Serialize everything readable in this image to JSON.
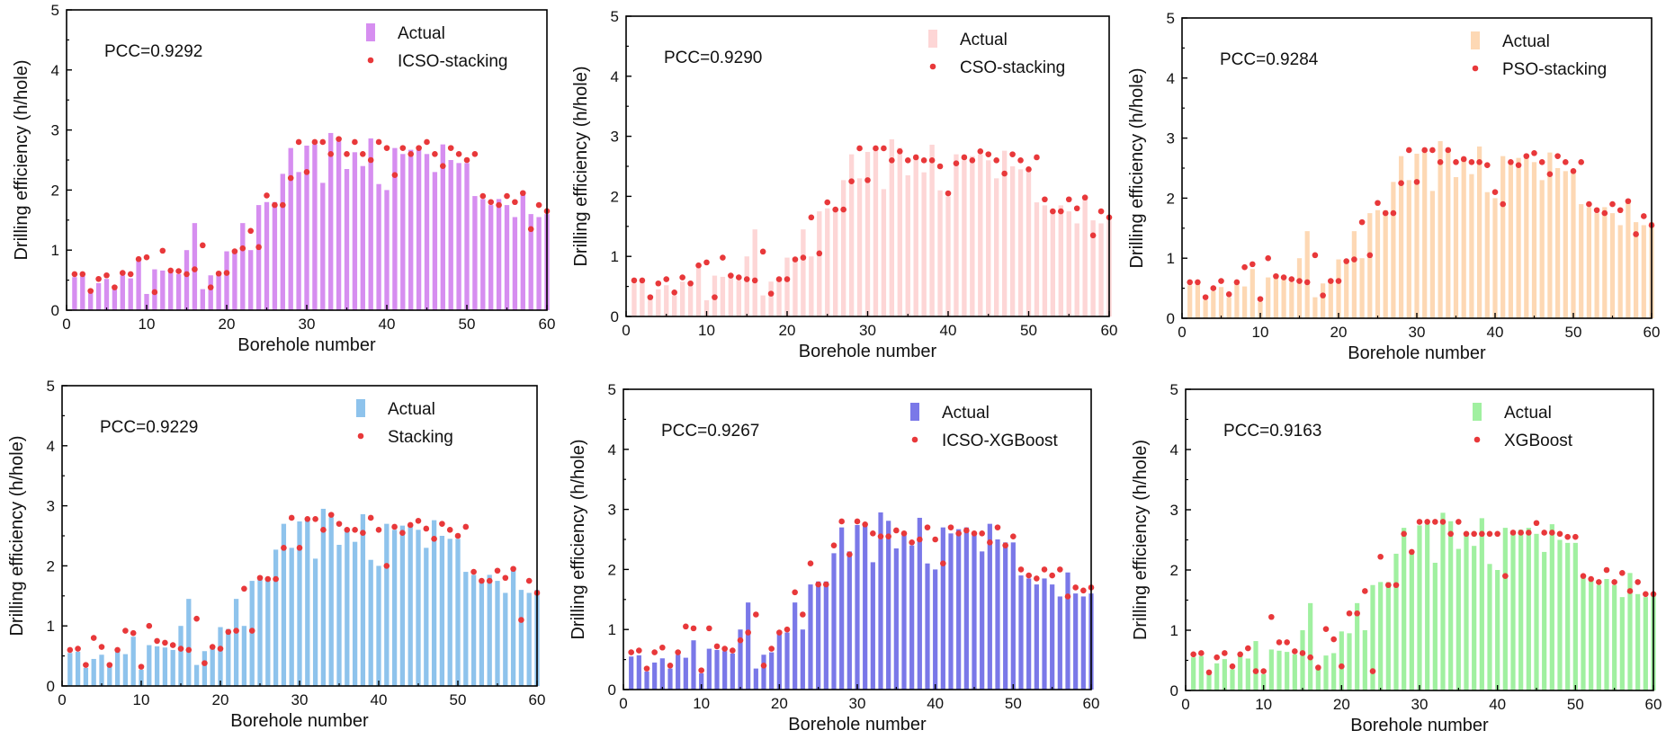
{
  "chart_data": [
    {
      "type": "bar",
      "pcc": "PCC=0.9292",
      "xlabel": "Borehole number",
      "ylabel": "Drilling efficiency (h/hole)",
      "xlim": [
        0,
        60
      ],
      "ylim": [
        0,
        5
      ],
      "xticks": [
        "0",
        "10",
        "20",
        "30",
        "40",
        "50",
        "60"
      ],
      "yticks": [
        "0",
        "1",
        "2",
        "3",
        "4",
        "5"
      ],
      "bar_color": "#d68ef0",
      "point_color": "#e8383a",
      "legend": {
        "position": "top-right",
        "bar_label": "Actual",
        "point_label": "ICSO-stacking"
      },
      "actual": [
        0.55,
        0.57,
        0.3,
        0.45,
        0.52,
        0.35,
        0.58,
        0.53,
        0.82,
        0.27,
        0.68,
        0.66,
        0.64,
        0.6,
        1.0,
        1.45,
        0.35,
        0.58,
        0.62,
        0.98,
        0.95,
        1.45,
        1.0,
        1.75,
        1.8,
        1.8,
        2.27,
        2.7,
        2.3,
        2.74,
        2.76,
        2.12,
        2.95,
        2.81,
        2.35,
        2.63,
        2.4,
        2.86,
        2.1,
        2.0,
        2.7,
        2.6,
        2.67,
        2.7,
        2.6,
        2.3,
        2.76,
        2.5,
        2.45,
        2.45,
        1.9,
        1.85,
        1.75,
        1.85,
        1.75,
        1.55,
        1.95,
        1.6,
        1.55,
        1.6
      ],
      "predicted": [
        0.6,
        0.6,
        0.32,
        0.52,
        0.58,
        0.38,
        0.62,
        0.6,
        0.85,
        0.88,
        0.3,
        0.99,
        0.66,
        0.65,
        0.6,
        0.68,
        1.08,
        0.38,
        0.61,
        0.62,
        0.98,
        1.03,
        1.32,
        1.05,
        1.91,
        1.75,
        1.75,
        2.2,
        2.8,
        2.3,
        2.8,
        2.8,
        2.6,
        2.85,
        2.6,
        2.8,
        2.6,
        2.5,
        2.8,
        2.7,
        2.25,
        2.7,
        2.6,
        2.7,
        2.8,
        2.6,
        2.4,
        2.7,
        2.6,
        2.5,
        2.6,
        1.9,
        1.8,
        1.75,
        1.9,
        1.8,
        1.95,
        1.35,
        1.75,
        1.65
      ]
    },
    {
      "type": "bar",
      "pcc": "PCC=0.9290",
      "xlabel": "Borehole number",
      "ylabel": "Drilling efficiency (h/hole)",
      "xlim": [
        0,
        60
      ],
      "ylim": [
        0,
        5
      ],
      "xticks": [
        "0",
        "10",
        "20",
        "30",
        "40",
        "50",
        "60"
      ],
      "yticks": [
        "0",
        "1",
        "2",
        "3",
        "4",
        "5"
      ],
      "bar_color": "#fdd6d6",
      "point_color": "#e8383a",
      "legend": {
        "position": "top-right",
        "bar_label": "Actual",
        "point_label": "CSO-stacking"
      },
      "actual": [
        0.55,
        0.57,
        0.3,
        0.45,
        0.52,
        0.35,
        0.58,
        0.53,
        0.82,
        0.27,
        0.68,
        0.66,
        0.64,
        0.6,
        1.0,
        1.45,
        0.35,
        0.58,
        0.62,
        0.98,
        0.95,
        1.45,
        1.0,
        1.75,
        1.8,
        1.8,
        2.27,
        2.7,
        2.3,
        2.74,
        2.76,
        2.12,
        2.95,
        2.81,
        2.35,
        2.63,
        2.4,
        2.86,
        2.1,
        2.0,
        2.7,
        2.6,
        2.67,
        2.7,
        2.6,
        2.3,
        2.76,
        2.5,
        2.45,
        2.45,
        1.9,
        1.85,
        1.75,
        1.85,
        1.75,
        1.55,
        1.95,
        1.6,
        1.55,
        1.6
      ],
      "predicted": [
        0.6,
        0.6,
        0.32,
        0.55,
        0.62,
        0.4,
        0.65,
        0.55,
        0.85,
        0.9,
        0.32,
        0.98,
        0.68,
        0.65,
        0.62,
        0.6,
        1.08,
        0.38,
        0.62,
        0.62,
        0.95,
        0.98,
        1.65,
        1.05,
        1.9,
        1.78,
        1.78,
        2.25,
        2.8,
        2.27,
        2.8,
        2.8,
        2.6,
        2.75,
        2.6,
        2.65,
        2.6,
        2.6,
        2.5,
        2.05,
        2.55,
        2.65,
        2.6,
        2.75,
        2.7,
        2.6,
        2.38,
        2.7,
        2.6,
        2.45,
        2.65,
        1.95,
        1.75,
        1.75,
        1.95,
        1.8,
        1.98,
        1.35,
        1.75,
        1.65
      ]
    },
    {
      "type": "bar",
      "pcc": "PCC=0.9284",
      "xlabel": "Borehole number",
      "ylabel": "Drilling efficiency (h/hole)",
      "xlim": [
        0,
        60
      ],
      "ylim": [
        0,
        5
      ],
      "xticks": [
        "0",
        "10",
        "20",
        "30",
        "40",
        "50",
        "60"
      ],
      "yticks": [
        "0",
        "1",
        "2",
        "3",
        "4",
        "5"
      ],
      "bar_color": "#fdd8b4",
      "point_color": "#e8383a",
      "legend": {
        "position": "top-right",
        "bar_label": "Actual",
        "point_label": "PSO-stacking"
      },
      "actual": [
        0.55,
        0.57,
        0.3,
        0.45,
        0.52,
        0.35,
        0.58,
        0.53,
        0.82,
        0.27,
        0.68,
        0.66,
        0.64,
        0.6,
        1.0,
        1.45,
        0.35,
        0.58,
        0.62,
        0.98,
        0.95,
        1.45,
        1.0,
        1.75,
        1.8,
        1.8,
        2.27,
        2.7,
        2.3,
        2.74,
        2.76,
        2.12,
        2.95,
        2.81,
        2.35,
        2.63,
        2.4,
        2.86,
        2.1,
        2.0,
        2.7,
        2.6,
        2.67,
        2.7,
        2.6,
        2.3,
        2.76,
        2.5,
        2.45,
        2.45,
        1.9,
        1.85,
        1.75,
        1.85,
        1.75,
        1.55,
        1.95,
        1.6,
        1.55,
        1.6
      ],
      "predicted": [
        0.6,
        0.6,
        0.35,
        0.5,
        0.62,
        0.4,
        0.6,
        0.85,
        0.9,
        0.32,
        1.0,
        0.7,
        0.68,
        0.65,
        0.62,
        0.6,
        1.05,
        0.38,
        0.62,
        0.62,
        0.95,
        0.98,
        1.6,
        1.05,
        1.92,
        1.75,
        1.75,
        2.25,
        2.8,
        2.27,
        2.8,
        2.8,
        2.6,
        2.8,
        2.6,
        2.65,
        2.6,
        2.6,
        2.55,
        2.1,
        1.9,
        2.6,
        2.55,
        2.7,
        2.75,
        2.6,
        2.4,
        2.7,
        2.6,
        2.45,
        2.6,
        1.9,
        1.8,
        1.75,
        1.9,
        1.8,
        1.95,
        1.4,
        1.7,
        1.55
      ]
    },
    {
      "type": "bar",
      "pcc": "PCC=0.9229",
      "xlabel": "Borehole number",
      "ylabel": "Drilling efficiency (h/hole)",
      "xlim": [
        0,
        60
      ],
      "ylim": [
        0,
        5
      ],
      "xticks": [
        "0",
        "10",
        "20",
        "30",
        "40",
        "50",
        "60"
      ],
      "yticks": [
        "0",
        "1",
        "2",
        "3",
        "4",
        "5"
      ],
      "bar_color": "#8ec3ec",
      "point_color": "#e8383a",
      "legend": {
        "position": "top-right",
        "bar_label": "Actual",
        "point_label": "Stacking"
      },
      "actual": [
        0.55,
        0.57,
        0.3,
        0.45,
        0.52,
        0.35,
        0.58,
        0.53,
        0.82,
        0.27,
        0.68,
        0.66,
        0.64,
        0.6,
        1.0,
        1.45,
        0.35,
        0.58,
        0.62,
        0.98,
        0.95,
        1.45,
        1.0,
        1.75,
        1.8,
        1.8,
        2.27,
        2.7,
        2.3,
        2.74,
        2.76,
        2.12,
        2.95,
        2.81,
        2.35,
        2.63,
        2.4,
        2.86,
        2.1,
        2.0,
        2.7,
        2.6,
        2.67,
        2.7,
        2.6,
        2.3,
        2.76,
        2.5,
        2.45,
        2.45,
        1.9,
        1.85,
        1.75,
        1.85,
        1.75,
        1.55,
        1.95,
        1.6,
        1.55,
        1.6
      ],
      "predicted": [
        0.6,
        0.62,
        0.35,
        0.8,
        0.65,
        0.35,
        0.6,
        0.92,
        0.88,
        0.32,
        1.0,
        0.75,
        0.72,
        0.68,
        0.62,
        0.6,
        1.12,
        0.38,
        0.65,
        0.62,
        0.9,
        0.92,
        1.62,
        0.92,
        1.8,
        1.78,
        1.78,
        2.3,
        2.8,
        2.3,
        2.78,
        2.78,
        2.6,
        2.85,
        2.7,
        2.6,
        2.6,
        2.55,
        2.8,
        2.6,
        2.0,
        2.65,
        2.55,
        2.68,
        2.75,
        2.62,
        2.45,
        2.7,
        2.6,
        2.5,
        2.65,
        1.9,
        1.75,
        1.75,
        1.92,
        1.8,
        1.95,
        1.1,
        1.75,
        1.55
      ]
    },
    {
      "type": "bar",
      "pcc": "PCC=0.9267",
      "xlabel": "Borehole number",
      "ylabel": "Drilling efficiency (h/hole)",
      "xlim": [
        0,
        60
      ],
      "ylim": [
        0,
        5
      ],
      "xticks": [
        "0",
        "10",
        "20",
        "30",
        "40",
        "50",
        "60"
      ],
      "yticks": [
        "0",
        "1",
        "2",
        "3",
        "4",
        "5"
      ],
      "bar_color": "#7a78e8",
      "point_color": "#e8383a",
      "legend": {
        "position": "top-right",
        "bar_label": "Actual",
        "point_label": "ICSO-XGBoost"
      },
      "actual": [
        0.55,
        0.57,
        0.3,
        0.45,
        0.52,
        0.35,
        0.58,
        0.53,
        0.82,
        0.27,
        0.68,
        0.66,
        0.64,
        0.6,
        1.0,
        1.45,
        0.35,
        0.58,
        0.62,
        0.98,
        0.95,
        1.45,
        1.0,
        1.75,
        1.8,
        1.8,
        2.27,
        2.7,
        2.3,
        2.74,
        2.76,
        2.12,
        2.95,
        2.81,
        2.35,
        2.63,
        2.4,
        2.86,
        2.1,
        2.0,
        2.7,
        2.6,
        2.67,
        2.7,
        2.6,
        2.3,
        2.76,
        2.5,
        2.45,
        2.45,
        1.9,
        1.85,
        1.75,
        1.85,
        1.75,
        1.55,
        1.95,
        1.6,
        1.55,
        1.6
      ],
      "predicted": [
        0.62,
        0.65,
        0.35,
        0.62,
        0.7,
        0.4,
        0.62,
        1.05,
        1.02,
        0.32,
        1.02,
        0.72,
        0.68,
        0.65,
        0.82,
        0.95,
        1.25,
        0.4,
        0.68,
        0.95,
        1.0,
        1.62,
        1.25,
        2.1,
        1.75,
        1.75,
        2.4,
        2.8,
        2.25,
        2.8,
        2.75,
        2.6,
        2.55,
        2.55,
        2.65,
        2.6,
        2.45,
        2.5,
        2.7,
        2.5,
        2.1,
        2.7,
        2.6,
        2.65,
        2.6,
        2.6,
        2.45,
        2.7,
        2.4,
        2.55,
        2.0,
        1.9,
        1.85,
        2.0,
        1.9,
        2.0,
        1.55,
        1.7,
        1.65,
        1.7
      ]
    },
    {
      "type": "bar",
      "pcc": "PCC=0.9163",
      "xlabel": "Borehole number",
      "ylabel": "Drilling efficiency (h/hole)",
      "xlim": [
        0,
        60
      ],
      "ylim": [
        0,
        5
      ],
      "xticks": [
        "0",
        "10",
        "20",
        "30",
        "40",
        "50",
        "60"
      ],
      "yticks": [
        "0",
        "1",
        "2",
        "3",
        "4",
        "5"
      ],
      "bar_color": "#a0f0a0",
      "point_color": "#e8383a",
      "legend": {
        "position": "top-right",
        "bar_label": "Actual",
        "point_label": "XGBoost"
      },
      "actual": [
        0.55,
        0.57,
        0.3,
        0.45,
        0.52,
        0.35,
        0.58,
        0.53,
        0.82,
        0.27,
        0.68,
        0.66,
        0.64,
        0.6,
        1.0,
        1.45,
        0.35,
        0.58,
        0.62,
        0.98,
        0.95,
        1.45,
        1.0,
        1.75,
        1.8,
        1.8,
        2.27,
        2.7,
        2.3,
        2.74,
        2.76,
        2.12,
        2.95,
        2.81,
        2.35,
        2.63,
        2.4,
        2.86,
        2.1,
        2.0,
        2.7,
        2.6,
        2.67,
        2.7,
        2.6,
        2.3,
        2.76,
        2.5,
        2.45,
        2.45,
        1.9,
        1.85,
        1.75,
        1.85,
        1.75,
        1.55,
        1.95,
        1.6,
        1.55,
        1.6
      ],
      "predicted": [
        0.6,
        0.62,
        0.3,
        0.55,
        0.62,
        0.4,
        0.6,
        0.7,
        0.32,
        0.32,
        1.22,
        0.8,
        0.8,
        0.65,
        0.62,
        0.55,
        0.38,
        1.02,
        0.85,
        0.4,
        1.28,
        1.28,
        1.65,
        0.32,
        2.22,
        1.75,
        1.75,
        2.6,
        2.3,
        2.8,
        2.8,
        2.8,
        2.8,
        2.6,
        2.8,
        2.6,
        2.6,
        2.6,
        2.6,
        2.6,
        1.9,
        2.62,
        2.62,
        2.62,
        2.78,
        2.62,
        2.62,
        2.6,
        2.55,
        2.55,
        1.9,
        1.85,
        1.8,
        2.0,
        1.8,
        1.95,
        1.65,
        1.8,
        1.6,
        1.6
      ]
    }
  ]
}
